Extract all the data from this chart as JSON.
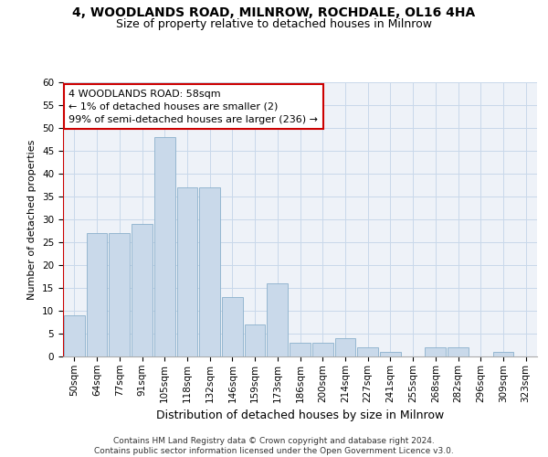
{
  "title": "4, WOODLANDS ROAD, MILNROW, ROCHDALE, OL16 4HA",
  "subtitle": "Size of property relative to detached houses in Milnrow",
  "xlabel": "Distribution of detached houses by size in Milnrow",
  "ylabel": "Number of detached properties",
  "bar_labels": [
    "50sqm",
    "64sqm",
    "77sqm",
    "91sqm",
    "105sqm",
    "118sqm",
    "132sqm",
    "146sqm",
    "159sqm",
    "173sqm",
    "186sqm",
    "200sqm",
    "214sqm",
    "227sqm",
    "241sqm",
    "255sqm",
    "268sqm",
    "282sqm",
    "296sqm",
    "309sqm",
    "323sqm"
  ],
  "bar_values": [
    9,
    27,
    27,
    29,
    48,
    37,
    37,
    13,
    7,
    16,
    3,
    3,
    4,
    2,
    1,
    0,
    2,
    2,
    0,
    1,
    0
  ],
  "bar_color": "#c9d9ea",
  "bar_edge_color": "#8ab0cc",
  "annotation_box_text": "4 WOODLANDS ROAD: 58sqm\n← 1% of detached houses are smaller (2)\n99% of semi-detached houses are larger (236) →",
  "annotation_box_color": "#ffffff",
  "annotation_box_edge_color": "#cc0000",
  "vline_color": "#cc0000",
  "ylim": [
    0,
    60
  ],
  "grid_color": "#c8d8ea",
  "background_color": "#eef2f8",
  "footer_text": "Contains HM Land Registry data © Crown copyright and database right 2024.\nContains public sector information licensed under the Open Government Licence v3.0.",
  "title_fontsize": 10,
  "subtitle_fontsize": 9,
  "xlabel_fontsize": 9,
  "ylabel_fontsize": 8,
  "tick_fontsize": 7.5,
  "annotation_fontsize": 8,
  "footer_fontsize": 6.5
}
